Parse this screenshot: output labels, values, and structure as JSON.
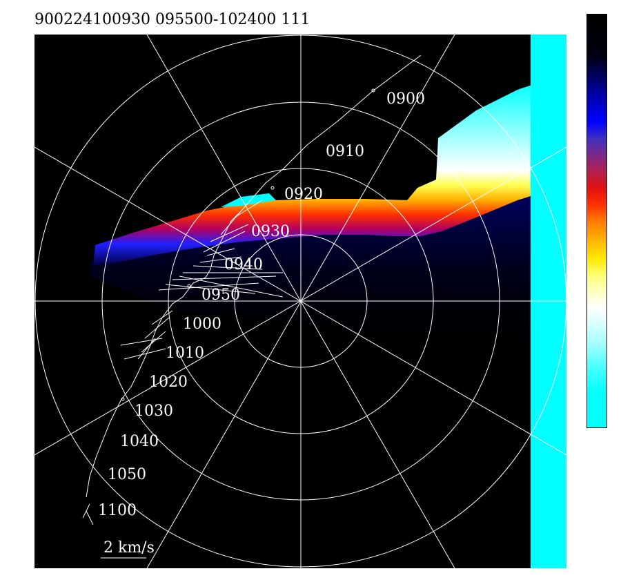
{
  "title": "900224100930 095500-102400 111",
  "scale_label": "2 km/s",
  "time_labels": [
    "0900",
    "0910",
    "0920",
    "0930",
    "0940",
    "0950",
    "1000",
    "1010",
    "1020",
    "1030",
    "1040",
    "1050",
    "1100"
  ],
  "colors": {
    "plot_background": "#000000",
    "grid": "#ffffff",
    "cyan_band": "#00ffff",
    "text": "#ffffff"
  }
}
